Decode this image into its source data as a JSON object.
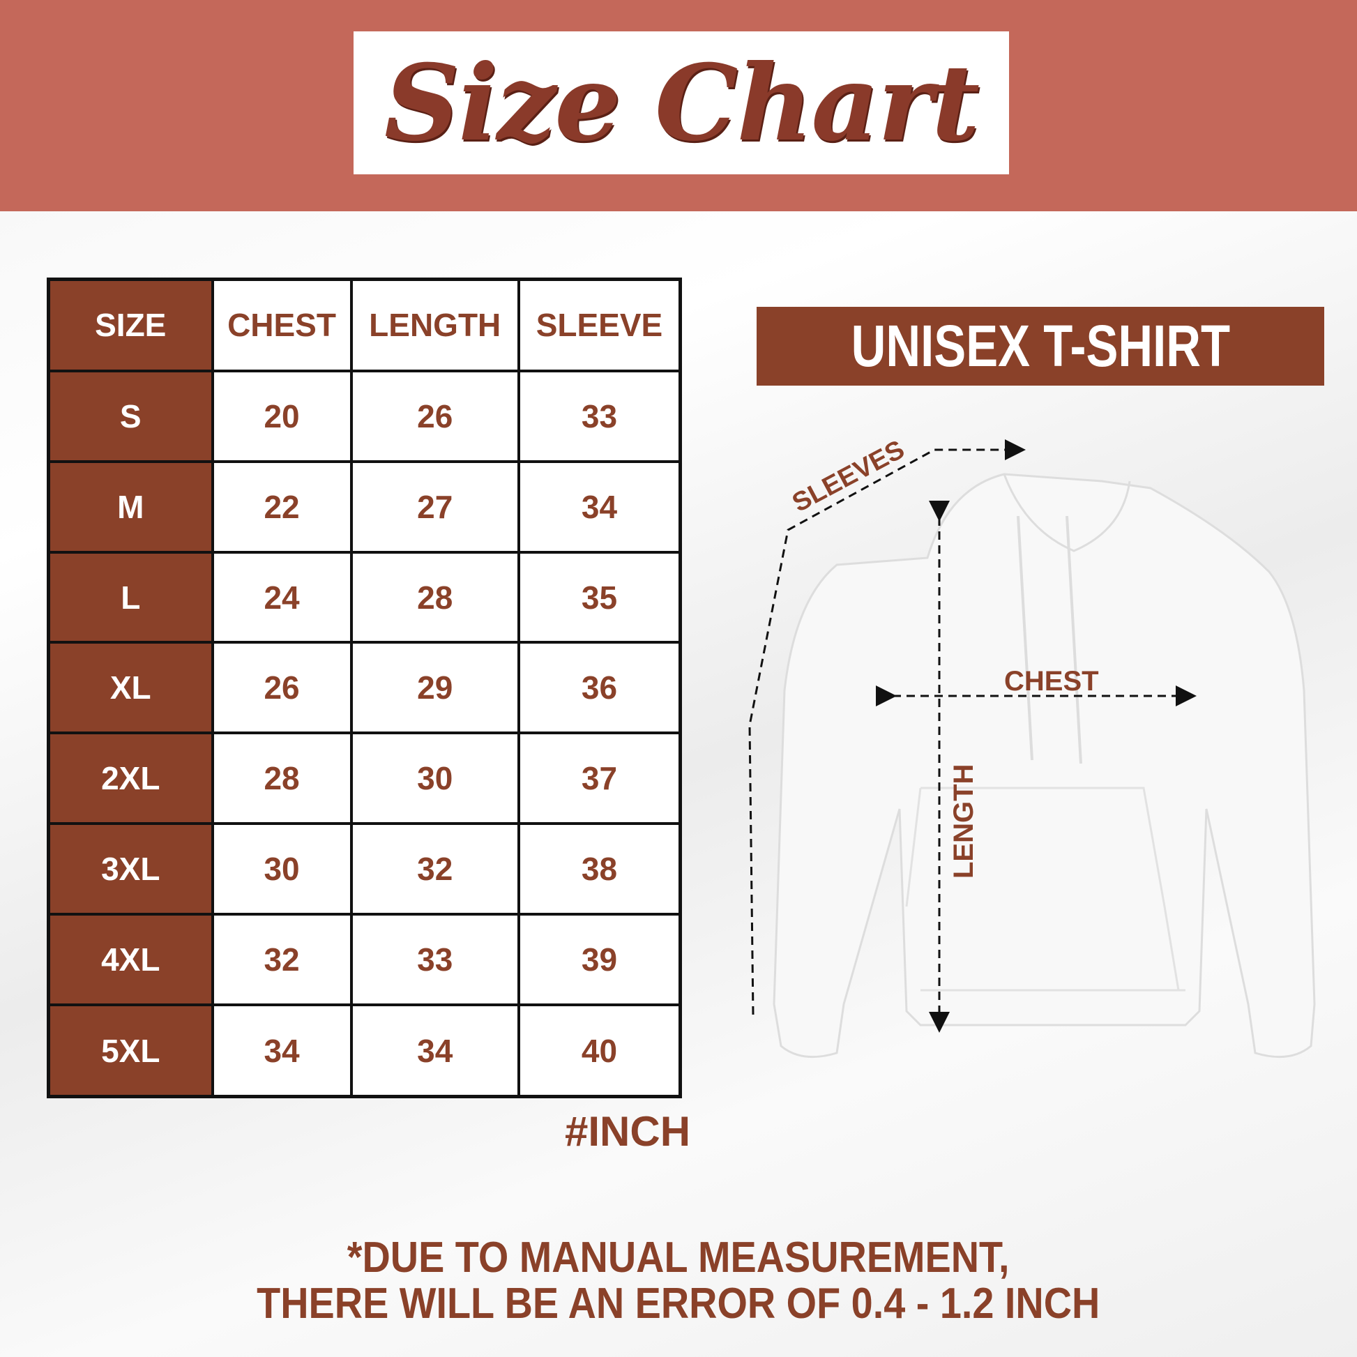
{
  "title": "Size Chart",
  "product": "UNISEX T-SHIRT",
  "table": {
    "headers": [
      "SIZE",
      "CHEST",
      "LENGTH",
      "SLEEVE"
    ],
    "rows": [
      [
        "S",
        "20",
        "26",
        "33"
      ],
      [
        "M",
        "22",
        "27",
        "34"
      ],
      [
        "L",
        "24",
        "28",
        "35"
      ],
      [
        "XL",
        "26",
        "29",
        "36"
      ],
      [
        "2XL",
        "28",
        "30",
        "37"
      ],
      [
        "3XL",
        "30",
        "32",
        "38"
      ],
      [
        "4XL",
        "32",
        "33",
        "39"
      ],
      [
        "5XL",
        "34",
        "34",
        "40"
      ]
    ]
  },
  "unit": "#INCH",
  "diagram": {
    "sleeves": "SLEEVES",
    "chest": "CHEST",
    "length": "LENGTH"
  },
  "note": {
    "line1": "*DUE TO MANUAL MEASUREMENT,",
    "line2": "THERE WILL BE AN ERROR OF 0.4 - 1.2 INCH"
  },
  "colors": {
    "header_band": "#c4685a",
    "brand_brown": "#8a4129"
  }
}
